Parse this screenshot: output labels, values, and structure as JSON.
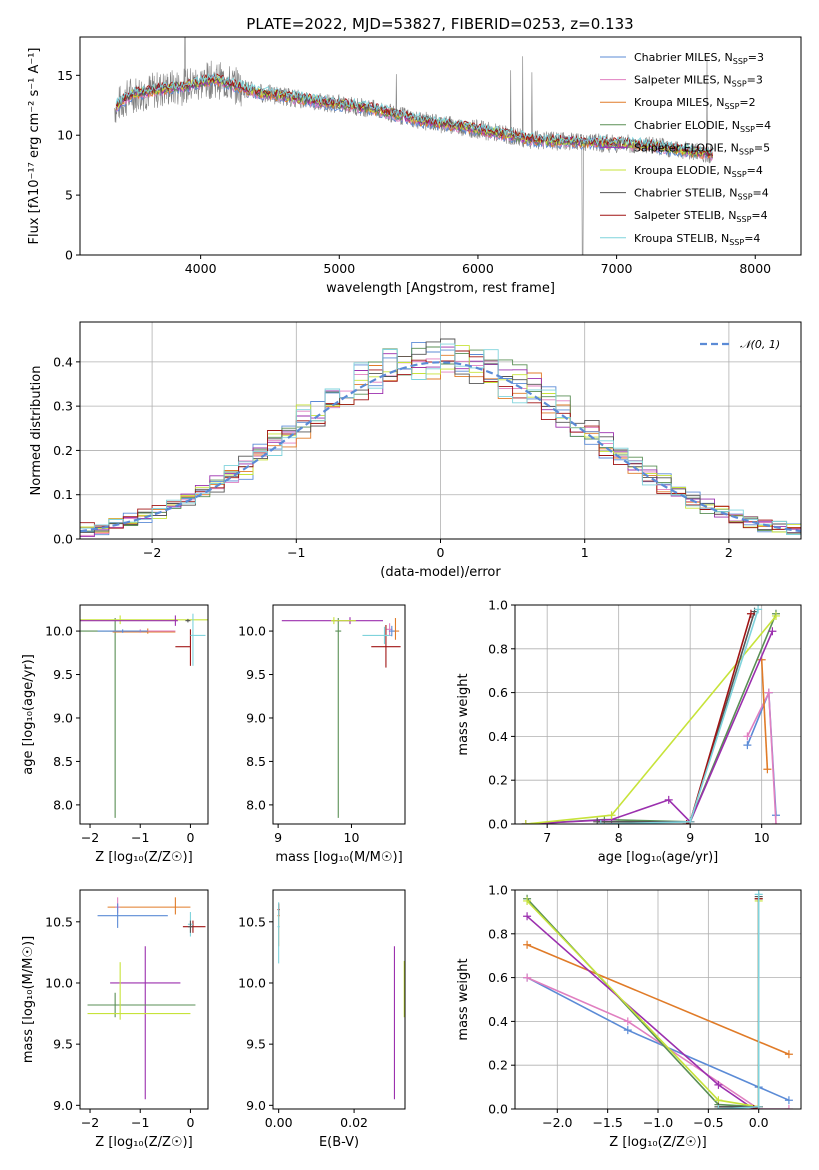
{
  "figure": {
    "title": "PLATE=2022, MJD=53827, FIBERID=0253, z=0.133"
  },
  "colors": {
    "observed": "#7f7f7f",
    "gaussian": "#5b8bd6",
    "models": [
      "#5b8bd6",
      "#e07fc0",
      "#e07b28",
      "#5a8f55",
      "#9b2fae",
      "#c7e33a",
      "#555555",
      "#a01414",
      "#7fd3dc"
    ]
  },
  "models": [
    {
      "name": "Chabrier MILES, N",
      "sub": "SSP",
      "n": "=3"
    },
    {
      "name": "Salpeter MILES, N",
      "sub": "SSP",
      "n": "=3"
    },
    {
      "name": "Kroupa MILES, N",
      "sub": "SSP",
      "n": "=2"
    },
    {
      "name": "Chabrier ELODIE, N",
      "sub": "SSP",
      "n": "=4"
    },
    {
      "name": "Salpeter ELODIE, N",
      "sub": "SSP",
      "n": "=5"
    },
    {
      "name": "Kroupa ELODIE, N",
      "sub": "SSP",
      "n": "=4"
    },
    {
      "name": "Chabrier STELIB, N",
      "sub": "SSP",
      "n": "=4"
    },
    {
      "name": "Salpeter STELIB, N",
      "sub": "SSP",
      "n": "=4"
    },
    {
      "name": "Kroupa STELIB, N",
      "sub": "SSP",
      "n": "=4"
    }
  ],
  "chart_data": [
    {
      "id": "spectrum",
      "type": "line",
      "xlabel": "wavelength [Angstrom, rest frame]",
      "ylabel": "Flux [fλ10⁻¹⁷ erg cm⁻² s⁻¹ A⁻¹]",
      "xlim": [
        3130,
        8330
      ],
      "ylim": [
        0,
        18.2
      ],
      "xticks": [
        "4000",
        "5000",
        "6000",
        "7000",
        "8000"
      ],
      "yticks": [
        "0",
        "5",
        "10",
        "15"
      ],
      "legend": "top-right",
      "continuum": [
        [
          3380,
          12.3
        ],
        [
          3500,
          13.4
        ],
        [
          3700,
          13.8
        ],
        [
          3900,
          14.1
        ],
        [
          4100,
          14.7
        ],
        [
          4400,
          13.6
        ],
        [
          4800,
          12.9
        ],
        [
          5200,
          12.3
        ],
        [
          5600,
          11.2
        ],
        [
          6000,
          10.5
        ],
        [
          6400,
          9.6
        ],
        [
          6800,
          9.4
        ],
        [
          7200,
          9.2
        ],
        [
          7500,
          8.7
        ],
        [
          7700,
          8.4
        ]
      ]
    },
    {
      "id": "residuals",
      "type": "line",
      "xlabel": "(data-model)/error",
      "ylabel": "Normed distribution",
      "xlim": [
        -2.5,
        2.5
      ],
      "ylim": [
        0,
        0.49
      ],
      "xticks": [
        "−2",
        "−1",
        "0",
        "1",
        "2"
      ],
      "yticks": [
        "0.0",
        "0.1",
        "0.2",
        "0.3",
        "0.4"
      ],
      "grid": true,
      "legend": "top-right",
      "legend_label": "𝒩(0, 1)",
      "gaussian": {
        "mean": 0,
        "sigma": 1
      }
    },
    {
      "id": "age-vs-Z",
      "type": "scatter",
      "xlabel": "Z [log₁₀(Z/Z☉)]",
      "ylabel": "age  [log₁₀(age/yr)]",
      "xlim": [
        -2.2,
        0.35
      ],
      "ylim": [
        7.78,
        10.3
      ],
      "xticks": [
        "−2",
        "−1",
        "0"
      ],
      "yticks": [
        "8.0",
        "8.5",
        "9.0",
        "9.5",
        "10.0"
      ],
      "points": [
        {
          "x": -1.5,
          "y": 10.0,
          "xlo": 2.05,
          "xhi": 1.18,
          "ylo": 2.15,
          "yhi": 0.15,
          "c": 3
        },
        {
          "x": -1.4,
          "y": 10.13,
          "xlo": 2.0,
          "xhi": 2.1,
          "ylo": 0.05,
          "yhi": 0.05,
          "c": 5
        },
        {
          "x": -0.3,
          "y": 10.12,
          "xlo": 1.9,
          "xhi": 0.05,
          "ylo": 0.06,
          "yhi": 0.06,
          "c": 4
        },
        {
          "x": -0.85,
          "y": 9.99,
          "xlo": 0.7,
          "xhi": 0.55,
          "ylo": 0.02,
          "yhi": 0.04,
          "c": 2
        },
        {
          "x": -1.0,
          "y": 10.0,
          "xlo": 0.6,
          "xhi": 0.7,
          "ylo": 0.02,
          "yhi": 0.02,
          "c": 1
        },
        {
          "x": -1.35,
          "y": 10.0,
          "xlo": 0.5,
          "xhi": 0.5,
          "ylo": 0.02,
          "yhi": 0.02,
          "c": 0
        },
        {
          "x": 0.0,
          "y": 9.82,
          "xlo": 0.3,
          "xhi": 0.0,
          "ylo": 0.22,
          "yhi": 0.2,
          "c": 7
        },
        {
          "x": 0.05,
          "y": 9.95,
          "xlo": 0.05,
          "xhi": 0.25,
          "ylo": 0.35,
          "yhi": 0.25,
          "c": 8
        },
        {
          "x": -0.05,
          "y": 10.12,
          "xlo": 0.05,
          "xhi": 0.05,
          "ylo": 0.02,
          "yhi": 0.02,
          "c": 6
        }
      ]
    },
    {
      "id": "age-vs-mass",
      "type": "scatter",
      "xlabel": "mass [log₁₀(M/M☉)]",
      "ylabel": "",
      "xlim": [
        8.93,
        10.73
      ],
      "ylim": [
        7.78,
        10.3
      ],
      "xticks": [
        "9",
        "10"
      ],
      "yticks": [
        "8.0",
        "8.5",
        "9.0",
        "9.5",
        "10.0"
      ],
      "points": [
        {
          "x": 9.82,
          "y": 10.0,
          "xlo": 0.04,
          "xhi": 0.04,
          "ylo": 2.15,
          "yhi": 0.15,
          "c": 3
        },
        {
          "x": 9.98,
          "y": 10.12,
          "xlo": 0.93,
          "xhi": 0.45,
          "ylo": 0.04,
          "yhi": 0.04,
          "c": 4
        },
        {
          "x": 9.76,
          "y": 10.12,
          "xlo": 0.04,
          "xhi": 0.3,
          "ylo": 0.04,
          "yhi": 0.04,
          "c": 5
        },
        {
          "x": 10.47,
          "y": 9.82,
          "xlo": 0.2,
          "xhi": 0.2,
          "ylo": 0.24,
          "yhi": 0.25,
          "c": 7
        },
        {
          "x": 10.45,
          "y": 9.95,
          "xlo": 0.3,
          "xhi": 0.1,
          "ylo": 0.1,
          "yhi": 0.1,
          "c": 8
        },
        {
          "x": 10.6,
          "y": 10.0,
          "xlo": 0.05,
          "xhi": 0.05,
          "ylo": 0.1,
          "yhi": 0.15,
          "c": 2
        },
        {
          "x": 10.52,
          "y": 10.02,
          "xlo": 0.04,
          "xhi": 0.04,
          "ylo": 0.07,
          "yhi": 0.07,
          "c": 1
        },
        {
          "x": 10.55,
          "y": 10.0,
          "xlo": 0.04,
          "xhi": 0.04,
          "ylo": 0.06,
          "yhi": 0.06,
          "c": 0
        }
      ]
    },
    {
      "id": "weight-vs-age",
      "type": "line",
      "xlabel": "age  [log₁₀(age/yr)]",
      "ylabel": "mass weight",
      "xlim": [
        6.55,
        10.55
      ],
      "ylim": [
        0,
        1.0
      ],
      "xticks": [
        "7",
        "8",
        "9",
        "10"
      ],
      "yticks": [
        "0.0",
        "0.2",
        "0.4",
        "0.6",
        "0.8",
        "1.0"
      ],
      "grid": true,
      "series": [
        {
          "c": 0,
          "points": [
            [
              9.8,
              0.36
            ],
            [
              10.1,
              0.6
            ],
            [
              10.2,
              0.04
            ]
          ]
        },
        {
          "c": 1,
          "points": [
            [
              9.8,
              0.4
            ],
            [
              10.1,
              0.6
            ],
            [
              10.2,
              0.0
            ]
          ]
        },
        {
          "c": 2,
          "points": [
            [
              10.0,
              0.75
            ],
            [
              10.08,
              0.25
            ]
          ]
        },
        {
          "c": 3,
          "points": [
            [
              6.7,
              0.0
            ],
            [
              7.8,
              0.02
            ],
            [
              9.0,
              0.01
            ],
            [
              10.2,
              0.96
            ]
          ]
        },
        {
          "c": 4,
          "points": [
            [
              6.7,
              0.0
            ],
            [
              7.9,
              0.02
            ],
            [
              8.7,
              0.11
            ],
            [
              9.0,
              0.01
            ],
            [
              10.15,
              0.88
            ]
          ]
        },
        {
          "c": 5,
          "points": [
            [
              6.7,
              0.0
            ],
            [
              7.9,
              0.04
            ],
            [
              10.2,
              0.95
            ]
          ]
        },
        {
          "c": 6,
          "points": [
            [
              7.7,
              0.01
            ],
            [
              9.0,
              0.01
            ],
            [
              9.9,
              0.97
            ]
          ]
        },
        {
          "c": 7,
          "points": [
            [
              8.95,
              0.0
            ],
            [
              9.0,
              0.01
            ],
            [
              9.85,
              0.96
            ]
          ]
        },
        {
          "c": 8,
          "points": [
            [
              7.75,
              0.0
            ],
            [
              9.0,
              0.01
            ],
            [
              9.95,
              0.98
            ]
          ]
        }
      ]
    },
    {
      "id": "mass-vs-Z",
      "type": "scatter",
      "xlabel": "Z [log₁₀(Z/Z☉)]",
      "ylabel": "mass [log₁₀(M/M☉)]",
      "xlim": [
        -2.2,
        0.35
      ],
      "ylim": [
        8.97,
        10.76
      ],
      "xticks": [
        "−2",
        "−1",
        "0"
      ],
      "yticks": [
        "9.0",
        "9.5",
        "10.0",
        "10.5"
      ],
      "points": [
        {
          "x": -0.3,
          "y": 10.62,
          "xlo": 1.35,
          "xhi": 0.3,
          "ylo": 0.06,
          "yhi": 0.08,
          "c": 2
        },
        {
          "x": -1.45,
          "y": 10.62,
          "xlo": 0.05,
          "xhi": 0.05,
          "ylo": 0.05,
          "yhi": 0.08,
          "c": 1
        },
        {
          "x": -1.45,
          "y": 10.55,
          "xlo": 0.4,
          "xhi": 1.0,
          "ylo": 0.1,
          "yhi": 0.1,
          "c": 0
        },
        {
          "x": 0.05,
          "y": 10.46,
          "xlo": 0.2,
          "xhi": 0.25,
          "ylo": 0.05,
          "yhi": 0.05,
          "c": 7
        },
        {
          "x": 0.0,
          "y": 10.48,
          "xlo": 0.05,
          "xhi": 0.05,
          "ylo": 0.1,
          "yhi": 0.1,
          "c": 8
        },
        {
          "x": -0.9,
          "y": 10.0,
          "xlo": 0.7,
          "xhi": 0.7,
          "ylo": 0.95,
          "yhi": 0.3,
          "c": 4
        },
        {
          "x": -1.5,
          "y": 9.82,
          "xlo": 0.55,
          "xhi": 1.6,
          "ylo": 0.1,
          "yhi": 0.1,
          "c": 3
        },
        {
          "x": -1.4,
          "y": 9.75,
          "xlo": 0.65,
          "xhi": 1.4,
          "ylo": 0.05,
          "yhi": 0.42,
          "c": 5
        },
        {
          "x": 0.0,
          "y": 10.46,
          "xlo": 0.05,
          "xhi": 0.05,
          "ylo": 0.05,
          "yhi": 0.05,
          "c": 6
        }
      ]
    },
    {
      "id": "mass-vs-ebv",
      "type": "scatter",
      "xlabel": "E(B-V)",
      "ylabel": "",
      "xlim": [
        -0.0015,
        0.0335
      ],
      "ylim": [
        8.97,
        10.76
      ],
      "xticks": [
        "0.00",
        "0.02"
      ],
      "yticks": [
        "9.0",
        "9.5",
        "10.0",
        "10.5"
      ],
      "points": [
        {
          "x": 0.0,
          "y": 10.55,
          "xlo": 0.0003,
          "xhi": 0.0003,
          "ylo": 0.25,
          "yhi": 0.1,
          "c": 2
        },
        {
          "x": 0.0,
          "y": 10.6,
          "xlo": 0.0003,
          "xhi": 0.0003,
          "ylo": 0.05,
          "yhi": 0.05,
          "c": 7
        },
        {
          "x": 0.0,
          "y": 10.46,
          "xlo": 0.0003,
          "xhi": 0.0003,
          "ylo": 0.3,
          "yhi": 0.2,
          "c": 8
        },
        {
          "x": 0.0307,
          "y": 10.0,
          "xlo": 0.0,
          "xhi": 0.0,
          "ylo": 0.95,
          "yhi": 0.3,
          "c": 4
        },
        {
          "x": 0.0333,
          "y": 9.82,
          "xlo": 0.0,
          "xhi": 0.0,
          "ylo": 0.1,
          "yhi": 0.36,
          "c": 5
        }
      ]
    },
    {
      "id": "weight-vs-Z",
      "type": "line",
      "xlabel": "Z [log₁₀(Z/Z☉)]",
      "ylabel": "mass weight",
      "xlim": [
        -2.42,
        0.42
      ],
      "ylim": [
        0,
        1.0
      ],
      "xticks": [
        "−2.0",
        "−1.5",
        "−1.0",
        "−0.5",
        "0.0"
      ],
      "yticks": [
        "0.0",
        "0.2",
        "0.4",
        "0.6",
        "0.8",
        "1.0"
      ],
      "grid": true,
      "series": [
        {
          "c": 0,
          "points": [
            [
              -2.3,
              0.6
            ],
            [
              -1.3,
              0.36
            ],
            [
              0.0,
              0.1
            ],
            [
              0.3,
              0.04
            ]
          ]
        },
        {
          "c": 1,
          "points": [
            [
              -2.3,
              0.6
            ],
            [
              -1.3,
              0.4
            ],
            [
              0.0,
              0.0
            ],
            [
              0.3,
              0.0
            ]
          ]
        },
        {
          "c": 2,
          "points": [
            [
              -2.3,
              0.75
            ],
            [
              0.3,
              0.25
            ]
          ]
        },
        {
          "c": 3,
          "points": [
            [
              -2.3,
              0.96
            ],
            [
              -0.4,
              0.02
            ],
            [
              0.0,
              0.01
            ],
            [
              0.0,
              0.96
            ]
          ]
        },
        {
          "c": 4,
          "points": [
            [
              -2.3,
              0.88
            ],
            [
              -0.4,
              0.11
            ],
            [
              -0.05,
              0.0
            ],
            [
              0.0,
              0.01
            ]
          ]
        },
        {
          "c": 5,
          "points": [
            [
              -2.3,
              0.95
            ],
            [
              -0.4,
              0.04
            ],
            [
              0.0,
              0.01
            ],
            [
              0.0,
              0.95
            ]
          ]
        },
        {
          "c": 6,
          "points": [
            [
              -0.4,
              0.01
            ],
            [
              0.0,
              0.01
            ],
            [
              0.0,
              0.97
            ]
          ]
        },
        {
          "c": 7,
          "points": [
            [
              -0.05,
              0.0
            ],
            [
              0.0,
              0.01
            ],
            [
              0.0,
              0.96
            ]
          ]
        },
        {
          "c": 8,
          "points": [
            [
              -0.4,
              0.0
            ],
            [
              0.0,
              0.01
            ],
            [
              0.0,
              0.98
            ]
          ]
        }
      ]
    }
  ]
}
